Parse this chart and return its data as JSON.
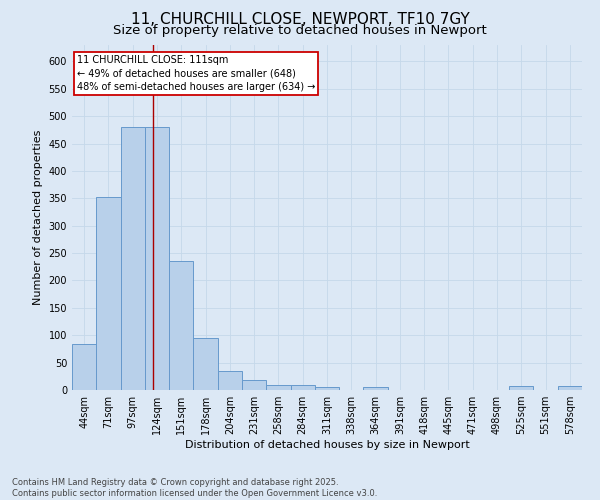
{
  "title_line1": "11, CHURCHILL CLOSE, NEWPORT, TF10 7GY",
  "title_line2": "Size of property relative to detached houses in Newport",
  "xlabel": "Distribution of detached houses by size in Newport",
  "ylabel": "Number of detached properties",
  "bar_labels": [
    "44sqm",
    "71sqm",
    "97sqm",
    "124sqm",
    "151sqm",
    "178sqm",
    "204sqm",
    "231sqm",
    "258sqm",
    "284sqm",
    "311sqm",
    "338sqm",
    "364sqm",
    "391sqm",
    "418sqm",
    "445sqm",
    "471sqm",
    "498sqm",
    "525sqm",
    "551sqm",
    "578sqm"
  ],
  "bar_values": [
    84,
    352,
    480,
    480,
    236,
    95,
    35,
    18,
    10,
    10,
    5,
    0,
    5,
    0,
    0,
    0,
    0,
    0,
    8,
    0,
    8
  ],
  "bar_color": "#b8d0ea",
  "bar_edge_color": "#6699cc",
  "grid_color": "#c5d8ea",
  "background_color": "#dce8f5",
  "vline_x": 2.85,
  "vline_color": "#aa0000",
  "annotation_text": "11 CHURCHILL CLOSE: 111sqm\n← 49% of detached houses are smaller (648)\n48% of semi-detached houses are larger (634) →",
  "annotation_box_color": "#ffffff",
  "annotation_box_edge": "#cc0000",
  "ylim": [
    0,
    630
  ],
  "yticks": [
    0,
    50,
    100,
    150,
    200,
    250,
    300,
    350,
    400,
    450,
    500,
    550,
    600
  ],
  "footer_text": "Contains HM Land Registry data © Crown copyright and database right 2025.\nContains public sector information licensed under the Open Government Licence v3.0.",
  "title_fontsize": 11,
  "subtitle_fontsize": 9.5,
  "axis_label_fontsize": 8,
  "tick_fontsize": 7,
  "annotation_fontsize": 7,
  "footer_fontsize": 6
}
